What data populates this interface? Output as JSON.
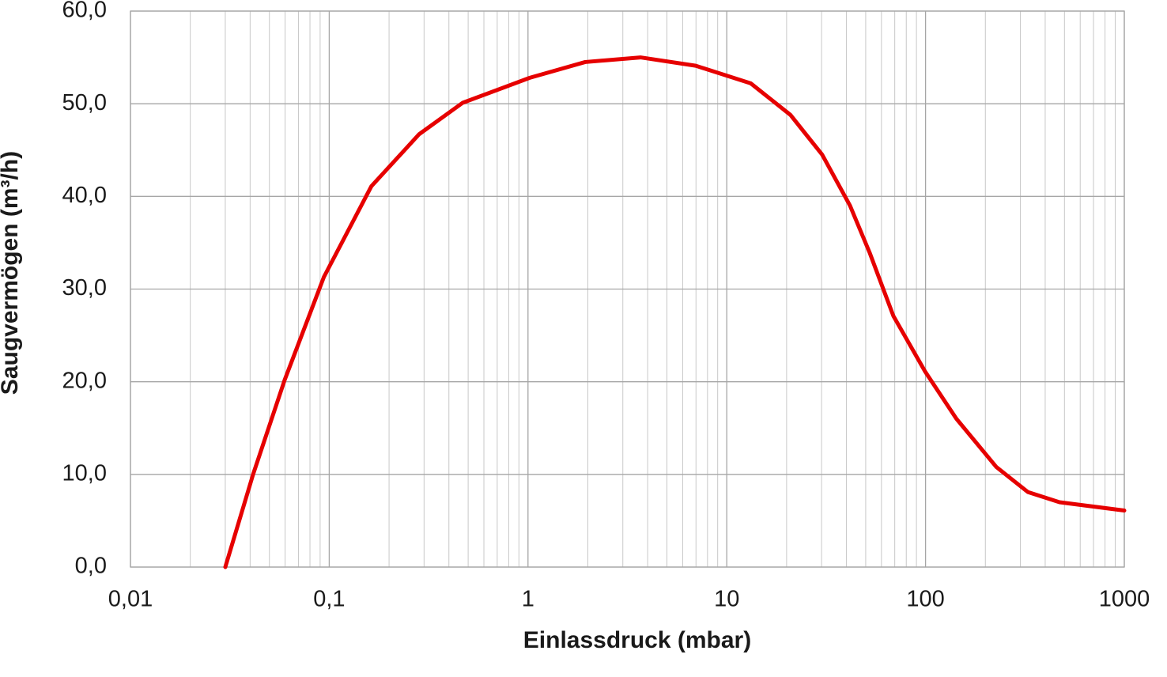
{
  "chart_data": {
    "type": "line",
    "x_label": "Einlassdruck (mbar)",
    "y_label": "Saugvermögen (m³/h)",
    "x_scale": "log",
    "xlim": [
      0.01,
      1000
    ],
    "ylim": [
      0,
      60
    ],
    "grid": true,
    "minor_grid": true,
    "xticks": [
      {
        "value": 0.01,
        "label": "0,01"
      },
      {
        "value": 0.1,
        "label": "0,1"
      },
      1,
      10,
      100,
      1000
    ],
    "yticks": [
      {
        "value": 0,
        "label": "0,0"
      },
      {
        "value": 10,
        "label": "10,0"
      },
      {
        "value": 20,
        "label": "20,0"
      },
      {
        "value": 30,
        "label": "30,0"
      },
      {
        "value": 40,
        "label": "40,0"
      },
      {
        "value": 50,
        "label": "50,0"
      },
      {
        "value": 60,
        "label": "60,0"
      }
    ],
    "series": [
      {
        "color": "#e60000",
        "x": [
          0.03,
          0.0414,
          0.0597,
          0.094,
          0.163,
          0.283,
          0.469,
          1.02,
          1.94,
          3.68,
          6.98,
          13.2,
          20.9,
          30.2,
          41.7,
          52.4,
          68.9,
          99.5,
          143,
          227,
          327,
          472,
          1000
        ],
        "values": [
          0,
          10.0,
          20.2,
          31.3,
          41.1,
          46.7,
          50.1,
          52.8,
          54.5,
          55.0,
          54.1,
          52.2,
          48.8,
          44.5,
          39.0,
          33.9,
          27.1,
          21.1,
          16.0,
          10.8,
          8.1,
          7.0,
          6.1
        ]
      }
    ]
  }
}
